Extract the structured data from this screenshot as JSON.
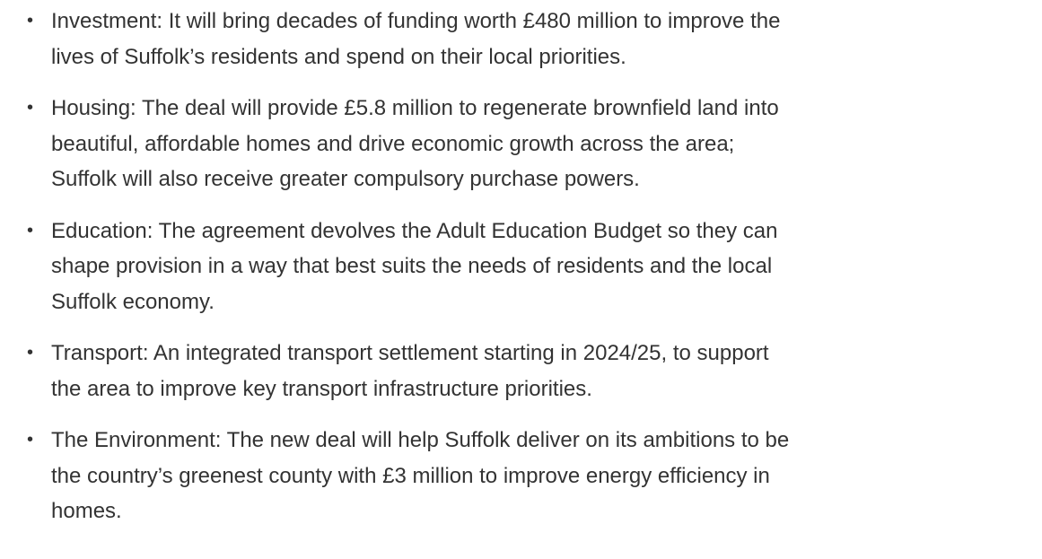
{
  "list": {
    "items": [
      [
        "Investment: It will bring decades of funding worth £480 million to improve the",
        "lives of Suffolk’s residents and spend on their local priorities."
      ],
      [
        "Housing: The deal will provide £5.8 million to regenerate brownfield land into",
        "beautiful, affordable homes and drive economic growth across the area;",
        "Suffolk will also receive greater compulsory purchase powers."
      ],
      [
        "Education: The agreement devolves the Adult Education Budget so they can",
        "shape provision in a way that best suits the needs of residents and the local",
        "Suffolk economy."
      ],
      [
        "Transport: An integrated transport settlement starting in 2024/25, to support",
        "the area to improve key transport infrastructure priorities."
      ],
      [
        "The Environment: The new deal will help Suffolk deliver on its ambitions to be",
        "the country’s greenest county with £3 million to improve energy efficiency in",
        "homes."
      ]
    ]
  }
}
